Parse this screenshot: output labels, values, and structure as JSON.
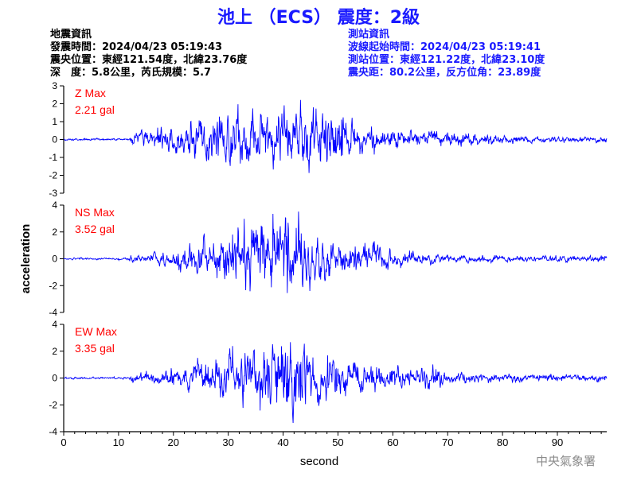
{
  "title": "池上 （ECS） 震度：2級",
  "event_info": {
    "heading": "地震資訊",
    "origin_time": "發震時間：2024/04/23 05:19:43",
    "epicenter": "震央位置：東經121.54度，北緯23.76度",
    "depth_magnitude": "深　度：5.8公里，芮氏規模：5.7"
  },
  "station_info": {
    "heading": "測站資訊",
    "onset_time": "波線起始時間：2024/04/23 05:19:41",
    "station_location": "測站位置：東經121.22度，北緯23.10度",
    "distance": "震央距：80.2公里，反方位角：23.89度"
  },
  "footer": "中央氣象署",
  "colors": {
    "trace": "#0000ff",
    "label": "#ff0000",
    "title": "#1a1aff",
    "axis": "#000000"
  },
  "chart_data": {
    "type": "line",
    "xlabel": "second",
    "ylabel": "acceleration",
    "xlim": [
      0,
      99
    ],
    "xticks": [
      0,
      10,
      20,
      30,
      40,
      50,
      60,
      70,
      80,
      90
    ],
    "grid": false,
    "panels": [
      {
        "name": "Z Max",
        "peak_label": "2.21 gal",
        "peak": 2.21,
        "ylim": [
          -3,
          3
        ],
        "yticks": [
          -3,
          -2,
          -1,
          0,
          1,
          2,
          3
        ]
      },
      {
        "name": "NS Max",
        "peak_label": "3.52 gal",
        "peak": 3.52,
        "ylim": [
          -4,
          4
        ],
        "yticks": [
          -4,
          -2,
          0,
          2,
          4
        ]
      },
      {
        "name": "EW Max",
        "peak_label": "3.35 gal",
        "peak": 3.35,
        "ylim": [
          -4,
          4
        ],
        "yticks": [
          -4,
          -2,
          0,
          2,
          4
        ]
      }
    ]
  }
}
